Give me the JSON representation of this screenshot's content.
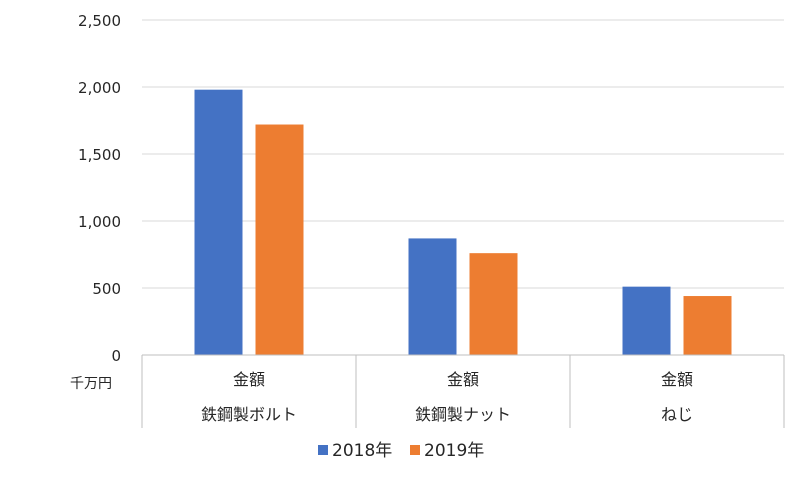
{
  "chart_data": {
    "type": "bar",
    "title": "",
    "unit_label": "千万円",
    "categories": [
      {
        "measure": "金額",
        "name": "鉄鋼製ボルト"
      },
      {
        "measure": "金額",
        "name": "鉄鋼製ナット"
      },
      {
        "measure": "金額",
        "name": "ねじ"
      }
    ],
    "series": [
      {
        "name": "2018年",
        "color": "#4472c4",
        "values": [
          1980,
          870,
          510
        ]
      },
      {
        "name": "2019年",
        "color": "#ed7d31",
        "values": [
          1720,
          760,
          440
        ]
      }
    ],
    "ylim": [
      0,
      2500
    ],
    "y_ticks": [
      0,
      500,
      1000,
      1500,
      2000,
      2500
    ],
    "y_tick_labels": [
      "0",
      "500",
      "1,000",
      "1,500",
      "2,000",
      "2,500"
    ],
    "grid": true,
    "legend_position": "bottom"
  }
}
